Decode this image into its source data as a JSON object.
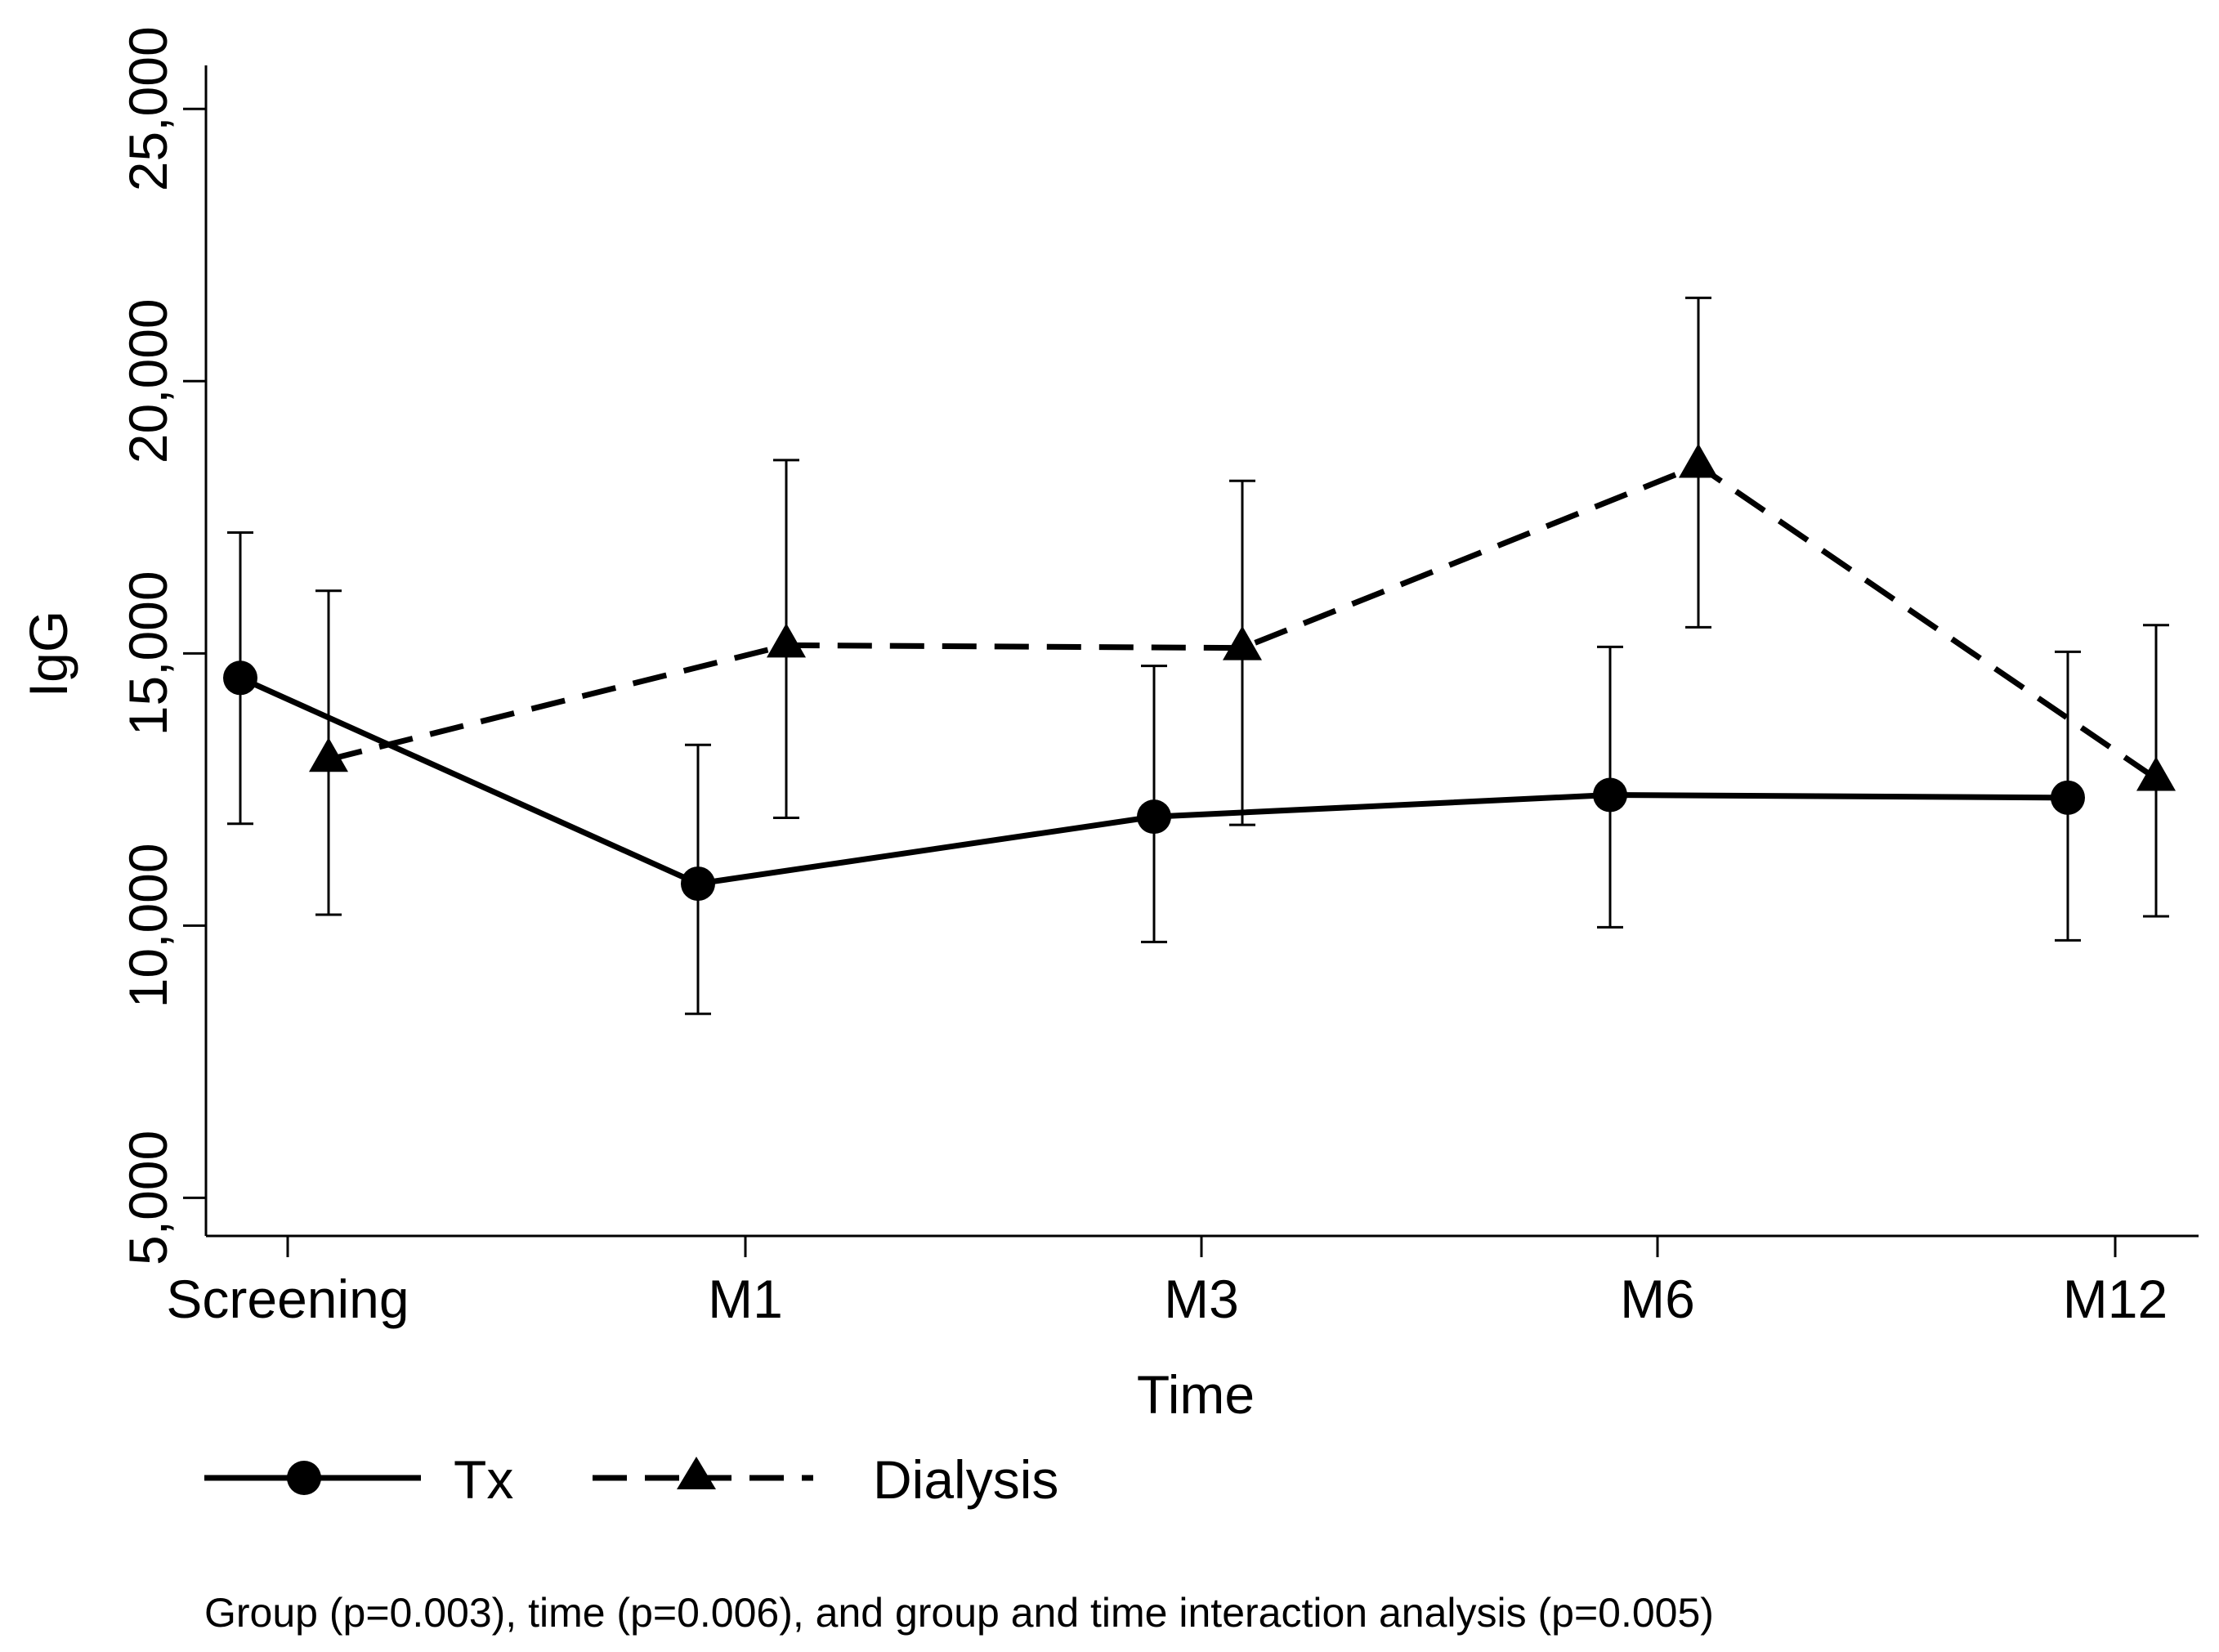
{
  "chart_data": {
    "type": "line",
    "title": "",
    "xlabel": "Time",
    "ylabel": "IgG",
    "categories": [
      "Screening",
      "M1",
      "M3",
      "M6",
      "M12"
    ],
    "ylim": [
      4300,
      25800
    ],
    "yticks": [
      5000,
      10000,
      15000,
      20000,
      25000
    ],
    "ytick_labels": [
      "5,000",
      "10,000",
      "15,000",
      "20,000",
      "25,000"
    ],
    "grid": false,
    "legend_position": "bottom",
    "series": [
      {
        "name": "Tx",
        "line_style": "solid",
        "marker": "circle",
        "values": [
          14550,
          10770,
          12000,
          12400,
          12350
        ],
        "error_low": [
          11870,
          8380,
          9700,
          9970,
          9730
        ],
        "error_high": [
          17220,
          13320,
          14770,
          15120,
          15030
        ]
      },
      {
        "name": "Dialysis",
        "line_style": "dashed",
        "marker": "triangle",
        "values": [
          13050,
          15150,
          15100,
          18450,
          12700
        ],
        "error_low": [
          10200,
          11980,
          11850,
          15480,
          10170
        ],
        "error_high": [
          16150,
          18550,
          18170,
          21530,
          15520
        ]
      }
    ],
    "footnote": "Group (p=0.003), time (p=0.006), and group and time interaction analysis (p=0.005)"
  },
  "colors": {
    "ink": "#000000",
    "background": "#ffffff"
  }
}
